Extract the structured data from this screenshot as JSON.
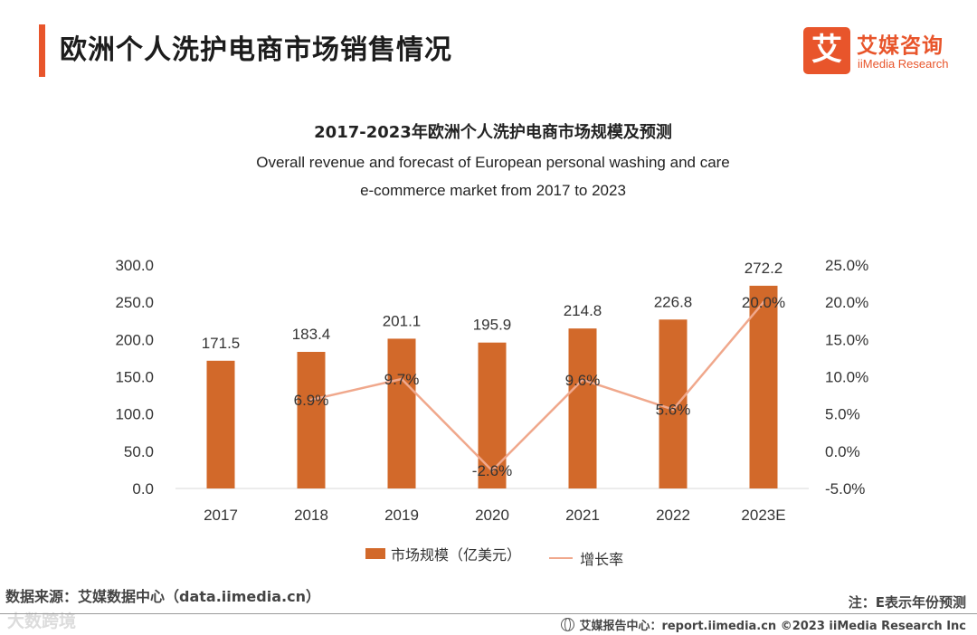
{
  "header": {
    "title": "欧洲个人洗护电商市场销售情况",
    "logo_mark": "艾",
    "logo_cn": "艾媒咨询",
    "logo_en": "iiMedia Research"
  },
  "colors": {
    "accent": "#e8552b",
    "bar": "#d2692a",
    "line": "#f0a88c"
  },
  "chart_data": {
    "type": "bar",
    "title": "2017-2023年欧洲个人洗护电商市场规模及预测",
    "subtitle_line1": "Overall revenue and forecast of European personal washing and care",
    "subtitle_line2": "e-commerce market from 2017 to 2023",
    "categories": [
      "2017",
      "2018",
      "2019",
      "2020",
      "2021",
      "2022",
      "2023E"
    ],
    "series": [
      {
        "name": "市场规模（亿美元）",
        "type": "bar",
        "axis": "left",
        "values": [
          171.5,
          183.4,
          201.1,
          195.9,
          214.8,
          226.8,
          272.2
        ],
        "labels": [
          "171.5",
          "183.4",
          "201.1",
          "195.9",
          "214.8",
          "226.8",
          "272.2"
        ]
      },
      {
        "name": "增长率",
        "type": "line",
        "axis": "right",
        "values": [
          null,
          6.9,
          9.7,
          -2.6,
          9.6,
          5.6,
          20.0
        ],
        "labels": [
          null,
          "6.9%",
          "9.7%",
          "-2.6%",
          "9.6%",
          "5.6%",
          "20.0%"
        ]
      }
    ],
    "y_left": {
      "min": 0,
      "max": 300,
      "step": 50,
      "ticks": [
        "0.0",
        "50.0",
        "100.0",
        "150.0",
        "200.0",
        "250.0",
        "300.0"
      ]
    },
    "y_right": {
      "min": -5,
      "max": 25,
      "step": 5,
      "ticks": [
        "-5.0%",
        "0.0%",
        "5.0%",
        "10.0%",
        "15.0%",
        "20.0%",
        "25.0%"
      ]
    },
    "legend": [
      "市场规模（亿美元）",
      "增长率"
    ],
    "legend_position": "bottom"
  },
  "footer": {
    "source": "数据来源：艾媒数据中心（data.iimedia.cn）",
    "note": "注：E表示年份预测",
    "watermark": "大数跨境",
    "report_center": "艾媒报告中心：report.iimedia.cn  ©2023  iiMedia Research  Inc"
  }
}
